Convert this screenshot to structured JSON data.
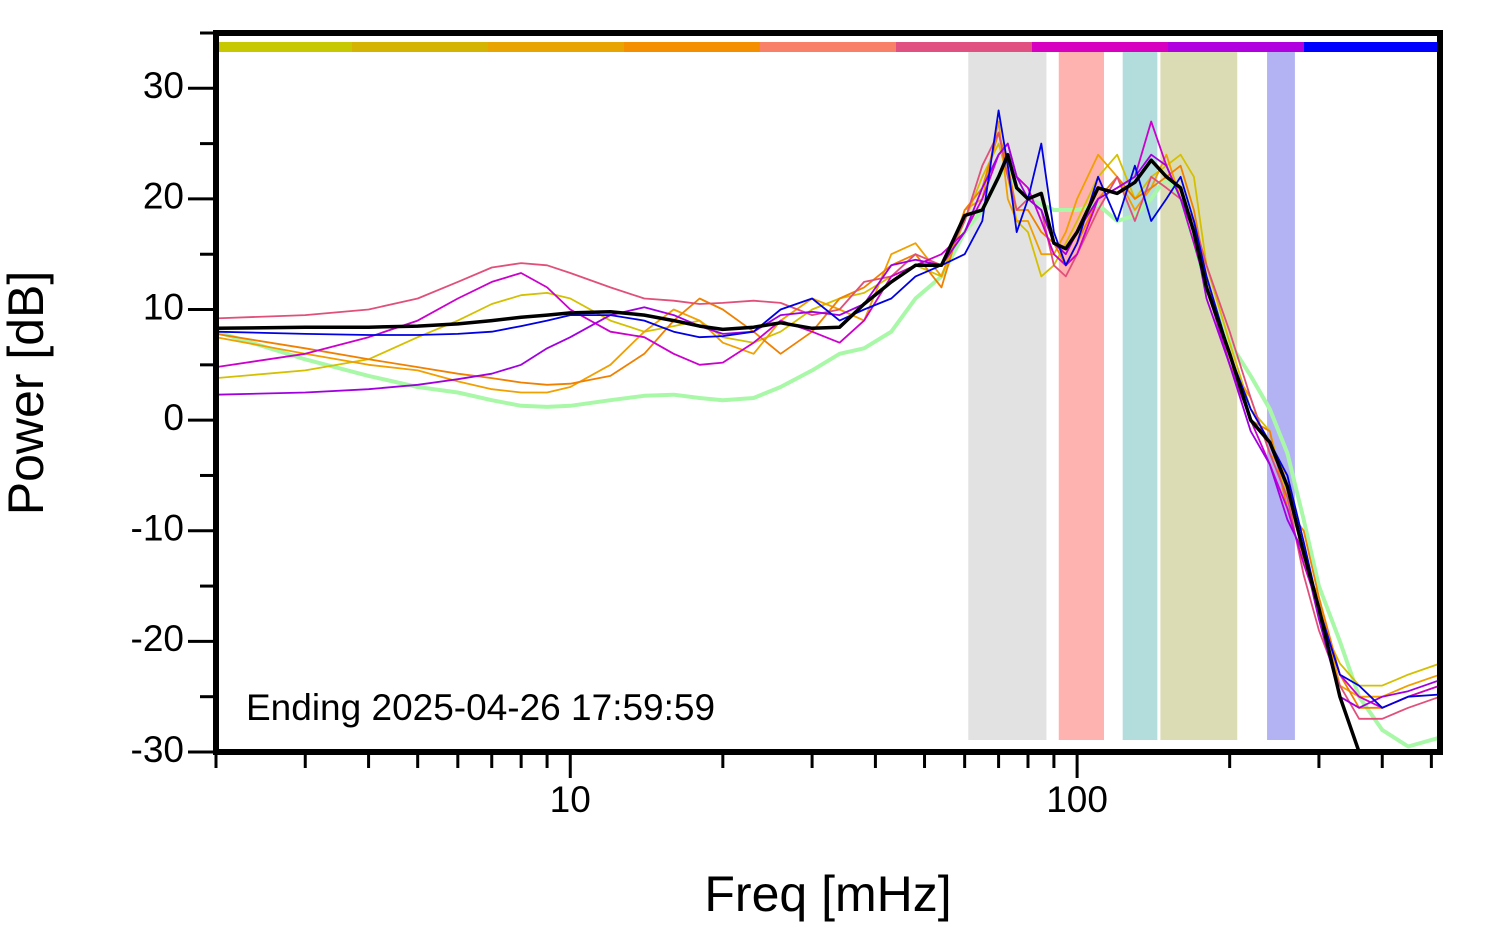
{
  "chart_data": {
    "type": "line",
    "xlabel": "Freq [mHz]",
    "ylabel": "Power [dB]",
    "annotation": "Ending 2025-04-26 17:59:59",
    "xscale": "log",
    "xlim": [
      2,
      520
    ],
    "ylim": [
      -30,
      35
    ],
    "xticks": [
      10,
      100
    ],
    "xminorticks": [
      2,
      3,
      4,
      5,
      6,
      7,
      8,
      9,
      20,
      30,
      40,
      50,
      60,
      70,
      80,
      90,
      200,
      300,
      400,
      500
    ],
    "yticks": [
      -30,
      -20,
      -10,
      0,
      10,
      20,
      30
    ],
    "yminorticks": [
      -25,
      -15,
      -5,
      5,
      15,
      25,
      35
    ],
    "time_colors": [
      "#c8c800",
      "#d4b400",
      "#e8a400",
      "#f49000",
      "#f88068",
      "#e05080",
      "#d800c0",
      "#b000e0",
      "#0000ff"
    ],
    "bands": [
      {
        "x": [
          61,
          87
        ],
        "color": "#e2e2e2"
      },
      {
        "x": [
          92,
          113
        ],
        "color": "#ffb3b0"
      },
      {
        "x": [
          123,
          144
        ],
        "color": "#b3dcdc"
      },
      {
        "x": [
          146,
          207
        ],
        "color": "#dcdcb4"
      },
      {
        "x": [
          237,
          269
        ],
        "color": "#b3b3f4"
      }
    ],
    "x": [
      2,
      3,
      4,
      5,
      6,
      7,
      8,
      9,
      10,
      12,
      14,
      16,
      18,
      20,
      23,
      26,
      30,
      34,
      38,
      43,
      48,
      54,
      60,
      65,
      70,
      73,
      76,
      80,
      85,
      90,
      95,
      100,
      110,
      120,
      130,
      140,
      150,
      160,
      170,
      180,
      200,
      220,
      240,
      260,
      280,
      300,
      330,
      360,
      400,
      450,
      520
    ],
    "series": [
      {
        "color": "#a8f8a8",
        "width": 4,
        "values": [
          8,
          5.5,
          4,
          3,
          2.5,
          1.8,
          1.3,
          1.2,
          1.3,
          1.8,
          2.2,
          2.3,
          2,
          1.8,
          2,
          3,
          4.5,
          6,
          6.5,
          8,
          11,
          13,
          17,
          19,
          22,
          23,
          21,
          20,
          19.5,
          19,
          19,
          19,
          19.5,
          18,
          18.5,
          20,
          22,
          20,
          16,
          12,
          7,
          4,
          1,
          -3,
          -9,
          -15,
          -20,
          -25,
          -28,
          -29.5,
          -28.7
        ]
      },
      {
        "color": "#d4c000",
        "width": 1.8,
        "values": [
          3.8,
          4.5,
          5.5,
          7.5,
          9,
          10.5,
          11.3,
          11.5,
          11,
          9,
          8,
          8.5,
          9,
          7.5,
          7,
          8,
          10,
          11,
          11.5,
          13,
          14,
          13,
          18,
          22,
          25,
          22,
          18,
          17,
          13,
          14,
          16,
          18,
          22,
          24,
          20,
          22,
          23,
          24,
          22,
          14,
          7,
          1,
          -1,
          -7,
          -12,
          -18,
          -22,
          -24,
          -24,
          -23,
          -22
        ]
      },
      {
        "color": "#f0a000",
        "width": 1.8,
        "values": [
          7.5,
          6,
          5,
          4.5,
          3.5,
          2.8,
          2.5,
          2.5,
          3,
          5,
          8,
          10,
          9,
          7,
          6,
          9,
          11,
          10,
          9,
          15,
          16,
          13,
          19,
          20,
          27,
          20,
          18,
          18,
          15,
          15,
          17,
          20,
          24,
          22,
          19,
          21,
          24,
          20,
          18,
          13,
          5,
          2,
          -3,
          -5,
          -13,
          -16,
          -24,
          -25,
          -25,
          -24,
          -23
        ]
      },
      {
        "color": "#f08000",
        "width": 1.8,
        "values": [
          7.8,
          6.5,
          5.5,
          4.8,
          4.2,
          3.8,
          3.4,
          3.2,
          3.3,
          4,
          6,
          9,
          11,
          10,
          8,
          6,
          8,
          11,
          12,
          14,
          15,
          12,
          19,
          21,
          26,
          23,
          19,
          19,
          17,
          16,
          14,
          16,
          20,
          22,
          20,
          21,
          22,
          23,
          19,
          13,
          6,
          0,
          -1,
          -8,
          -10,
          -16,
          -23,
          -26,
          -26,
          -25,
          -24
        ]
      },
      {
        "color": "#e0507a",
        "width": 1.8,
        "values": [
          9.2,
          9.5,
          10,
          11,
          12.5,
          13.8,
          14.2,
          14,
          13.3,
          12,
          11,
          10.8,
          10.5,
          10.6,
          10.8,
          10.6,
          9.5,
          10,
          12.5,
          13,
          15,
          14,
          18,
          23,
          26,
          22,
          19,
          20,
          19,
          14,
          13,
          15,
          19,
          22,
          18,
          22,
          21,
          20,
          18,
          14,
          8,
          2,
          -3,
          -7,
          -14,
          -19,
          -24,
          -27,
          -27,
          -26,
          -25
        ]
      },
      {
        "color": "#cc00cc",
        "width": 1.8,
        "values": [
          4.8,
          6,
          7.5,
          9,
          11,
          12.5,
          13.3,
          12,
          10,
          8,
          7.5,
          6,
          5,
          5.2,
          7,
          9,
          8,
          7,
          9,
          13,
          14,
          15,
          17,
          20,
          24,
          25,
          22,
          21,
          18,
          15,
          14,
          15,
          20,
          21,
          22,
          27,
          23,
          20,
          16,
          12,
          5,
          0,
          -4,
          -8,
          -13,
          -17,
          -23,
          -25,
          -26,
          -25,
          -24
        ]
      },
      {
        "color": "#a000e0",
        "width": 1.8,
        "values": [
          2.3,
          2.5,
          2.8,
          3.2,
          3.7,
          4.2,
          5,
          6.5,
          7.5,
          9.5,
          10.2,
          9.5,
          8.5,
          7.8,
          8,
          9.5,
          9.8,
          9.5,
          10.5,
          14,
          14.5,
          14,
          17,
          21,
          24,
          25,
          22,
          20,
          19,
          16,
          15,
          17,
          20,
          21,
          22,
          24,
          23,
          20,
          17,
          11,
          5,
          -1,
          -4,
          -9,
          -12,
          -18,
          -25,
          -26,
          -25,
          -24.5,
          -23.5
        ]
      },
      {
        "color": "#0000e0",
        "width": 1.8,
        "values": [
          8,
          7.8,
          7.7,
          7.7,
          7.8,
          8,
          8.5,
          9,
          9.5,
          9.5,
          9,
          8,
          7.5,
          7.6,
          8,
          10,
          11,
          9,
          10,
          11,
          13,
          14,
          15,
          18,
          28,
          23,
          17,
          20,
          25,
          17,
          14,
          16,
          22,
          18,
          23,
          18,
          20,
          22,
          18,
          13,
          6,
          1,
          -2,
          -5,
          -11,
          -17,
          -23,
          -24,
          -26,
          -25,
          -24.8
        ]
      },
      {
        "color": "#000000",
        "width": 3.5,
        "values": [
          8.3,
          8.4,
          8.4,
          8.5,
          8.7,
          9,
          9.3,
          9.5,
          9.7,
          9.8,
          9.5,
          9,
          8.5,
          8.2,
          8.4,
          8.8,
          8.3,
          8.4,
          10.5,
          12.5,
          14,
          14,
          18.5,
          19,
          22,
          24,
          21,
          20,
          20.5,
          16,
          15.5,
          17,
          21,
          20.5,
          21.5,
          23.5,
          22,
          21,
          17,
          12,
          6,
          0,
          -2,
          -6,
          -12,
          -17,
          -25,
          -30,
          null,
          null,
          null
        ]
      }
    ]
  }
}
